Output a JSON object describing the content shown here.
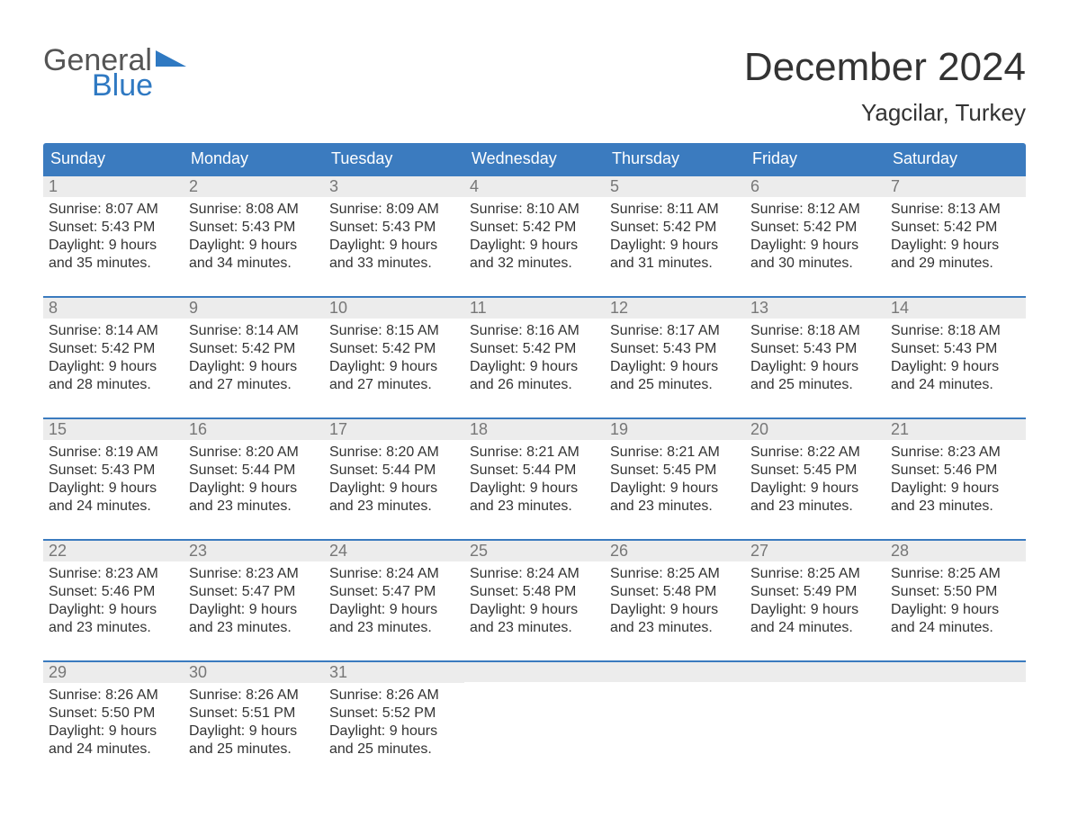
{
  "brand": {
    "word1": "General",
    "word2": "Blue"
  },
  "header": {
    "month_title": "December 2024",
    "location": "Yagcilar, Turkey"
  },
  "colors": {
    "header_bg": "#3b7bbf",
    "header_text": "#ffffff",
    "daynum_bg": "#ececec",
    "daynum_text": "#777777",
    "body_text": "#333333",
    "rule": "#3b7bbf",
    "brand_gray": "#555555",
    "brand_blue": "#2f79c2"
  },
  "dow": [
    "Sunday",
    "Monday",
    "Tuesday",
    "Wednesday",
    "Thursday",
    "Friday",
    "Saturday"
  ],
  "weeks": [
    [
      {
        "n": "1",
        "sr": "Sunrise: 8:07 AM",
        "ss": "Sunset: 5:43 PM",
        "d1": "Daylight: 9 hours",
        "d2": "and 35 minutes."
      },
      {
        "n": "2",
        "sr": "Sunrise: 8:08 AM",
        "ss": "Sunset: 5:43 PM",
        "d1": "Daylight: 9 hours",
        "d2": "and 34 minutes."
      },
      {
        "n": "3",
        "sr": "Sunrise: 8:09 AM",
        "ss": "Sunset: 5:43 PM",
        "d1": "Daylight: 9 hours",
        "d2": "and 33 minutes."
      },
      {
        "n": "4",
        "sr": "Sunrise: 8:10 AM",
        "ss": "Sunset: 5:42 PM",
        "d1": "Daylight: 9 hours",
        "d2": "and 32 minutes."
      },
      {
        "n": "5",
        "sr": "Sunrise: 8:11 AM",
        "ss": "Sunset: 5:42 PM",
        "d1": "Daylight: 9 hours",
        "d2": "and 31 minutes."
      },
      {
        "n": "6",
        "sr": "Sunrise: 8:12 AM",
        "ss": "Sunset: 5:42 PM",
        "d1": "Daylight: 9 hours",
        "d2": "and 30 minutes."
      },
      {
        "n": "7",
        "sr": "Sunrise: 8:13 AM",
        "ss": "Sunset: 5:42 PM",
        "d1": "Daylight: 9 hours",
        "d2": "and 29 minutes."
      }
    ],
    [
      {
        "n": "8",
        "sr": "Sunrise: 8:14 AM",
        "ss": "Sunset: 5:42 PM",
        "d1": "Daylight: 9 hours",
        "d2": "and 28 minutes."
      },
      {
        "n": "9",
        "sr": "Sunrise: 8:14 AM",
        "ss": "Sunset: 5:42 PM",
        "d1": "Daylight: 9 hours",
        "d2": "and 27 minutes."
      },
      {
        "n": "10",
        "sr": "Sunrise: 8:15 AM",
        "ss": "Sunset: 5:42 PM",
        "d1": "Daylight: 9 hours",
        "d2": "and 27 minutes."
      },
      {
        "n": "11",
        "sr": "Sunrise: 8:16 AM",
        "ss": "Sunset: 5:42 PM",
        "d1": "Daylight: 9 hours",
        "d2": "and 26 minutes."
      },
      {
        "n": "12",
        "sr": "Sunrise: 8:17 AM",
        "ss": "Sunset: 5:43 PM",
        "d1": "Daylight: 9 hours",
        "d2": "and 25 minutes."
      },
      {
        "n": "13",
        "sr": "Sunrise: 8:18 AM",
        "ss": "Sunset: 5:43 PM",
        "d1": "Daylight: 9 hours",
        "d2": "and 25 minutes."
      },
      {
        "n": "14",
        "sr": "Sunrise: 8:18 AM",
        "ss": "Sunset: 5:43 PM",
        "d1": "Daylight: 9 hours",
        "d2": "and 24 minutes."
      }
    ],
    [
      {
        "n": "15",
        "sr": "Sunrise: 8:19 AM",
        "ss": "Sunset: 5:43 PM",
        "d1": "Daylight: 9 hours",
        "d2": "and 24 minutes."
      },
      {
        "n": "16",
        "sr": "Sunrise: 8:20 AM",
        "ss": "Sunset: 5:44 PM",
        "d1": "Daylight: 9 hours",
        "d2": "and 23 minutes."
      },
      {
        "n": "17",
        "sr": "Sunrise: 8:20 AM",
        "ss": "Sunset: 5:44 PM",
        "d1": "Daylight: 9 hours",
        "d2": "and 23 minutes."
      },
      {
        "n": "18",
        "sr": "Sunrise: 8:21 AM",
        "ss": "Sunset: 5:44 PM",
        "d1": "Daylight: 9 hours",
        "d2": "and 23 minutes."
      },
      {
        "n": "19",
        "sr": "Sunrise: 8:21 AM",
        "ss": "Sunset: 5:45 PM",
        "d1": "Daylight: 9 hours",
        "d2": "and 23 minutes."
      },
      {
        "n": "20",
        "sr": "Sunrise: 8:22 AM",
        "ss": "Sunset: 5:45 PM",
        "d1": "Daylight: 9 hours",
        "d2": "and 23 minutes."
      },
      {
        "n": "21",
        "sr": "Sunrise: 8:23 AM",
        "ss": "Sunset: 5:46 PM",
        "d1": "Daylight: 9 hours",
        "d2": "and 23 minutes."
      }
    ],
    [
      {
        "n": "22",
        "sr": "Sunrise: 8:23 AM",
        "ss": "Sunset: 5:46 PM",
        "d1": "Daylight: 9 hours",
        "d2": "and 23 minutes."
      },
      {
        "n": "23",
        "sr": "Sunrise: 8:23 AM",
        "ss": "Sunset: 5:47 PM",
        "d1": "Daylight: 9 hours",
        "d2": "and 23 minutes."
      },
      {
        "n": "24",
        "sr": "Sunrise: 8:24 AM",
        "ss": "Sunset: 5:47 PM",
        "d1": "Daylight: 9 hours",
        "d2": "and 23 minutes."
      },
      {
        "n": "25",
        "sr": "Sunrise: 8:24 AM",
        "ss": "Sunset: 5:48 PM",
        "d1": "Daylight: 9 hours",
        "d2": "and 23 minutes."
      },
      {
        "n": "26",
        "sr": "Sunrise: 8:25 AM",
        "ss": "Sunset: 5:48 PM",
        "d1": "Daylight: 9 hours",
        "d2": "and 23 minutes."
      },
      {
        "n": "27",
        "sr": "Sunrise: 8:25 AM",
        "ss": "Sunset: 5:49 PM",
        "d1": "Daylight: 9 hours",
        "d2": "and 24 minutes."
      },
      {
        "n": "28",
        "sr": "Sunrise: 8:25 AM",
        "ss": "Sunset: 5:50 PM",
        "d1": "Daylight: 9 hours",
        "d2": "and 24 minutes."
      }
    ],
    [
      {
        "n": "29",
        "sr": "Sunrise: 8:26 AM",
        "ss": "Sunset: 5:50 PM",
        "d1": "Daylight: 9 hours",
        "d2": "and 24 minutes."
      },
      {
        "n": "30",
        "sr": "Sunrise: 8:26 AM",
        "ss": "Sunset: 5:51 PM",
        "d1": "Daylight: 9 hours",
        "d2": "and 25 minutes."
      },
      {
        "n": "31",
        "sr": "Sunrise: 8:26 AM",
        "ss": "Sunset: 5:52 PM",
        "d1": "Daylight: 9 hours",
        "d2": "and 25 minutes."
      },
      null,
      null,
      null,
      null
    ]
  ]
}
